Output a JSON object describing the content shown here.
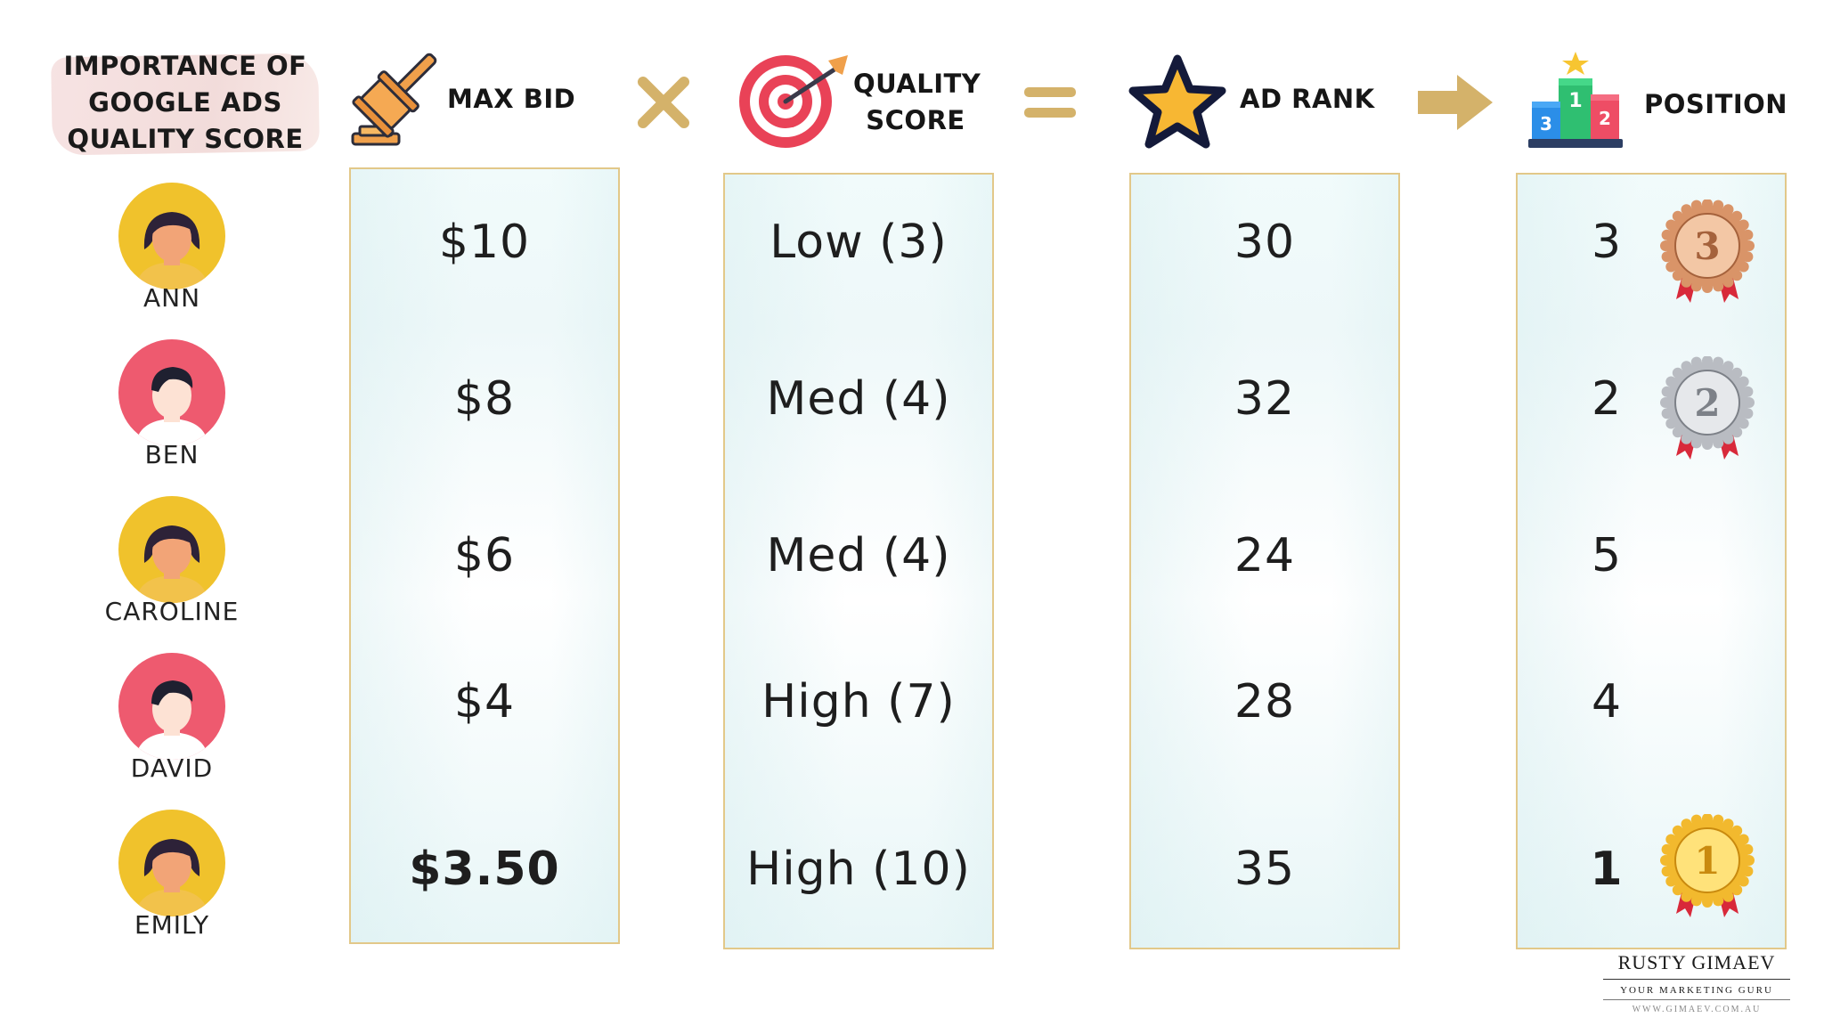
{
  "title": {
    "line1": "IMPORTANCE OF",
    "line2": "GOOGLE ADS",
    "line3": "QUALITY SCORE"
  },
  "headers": {
    "max_bid": "MAX BID",
    "quality_score_line1": "QUALITY",
    "quality_score_line2": "SCORE",
    "ad_rank": "AD RANK",
    "position": "POSITION"
  },
  "people": [
    {
      "name": "ANN",
      "bid": "$10",
      "quality": "Low (3)",
      "ad_rank": "30",
      "position": "3",
      "medal": "bronze-medal-icon",
      "avatar_bg": "#f0c22c"
    },
    {
      "name": "BEN",
      "bid": "$8",
      "quality": "Med (4)",
      "ad_rank": "32",
      "position": "2",
      "medal": "silver-medal-icon",
      "avatar_bg": "#ee5a6f"
    },
    {
      "name": "CAROLINE",
      "bid": "$6",
      "quality": "Med (4)",
      "ad_rank": "24",
      "position": "5",
      "medal": "",
      "avatar_bg": "#f0c22c"
    },
    {
      "name": "DAVID",
      "bid": "$4",
      "quality": "High (7)",
      "ad_rank": "28",
      "position": "4",
      "medal": "",
      "avatar_bg": "#ee5a6f"
    },
    {
      "name": "EMILY",
      "bid": "$3.50",
      "quality": "High (10)",
      "ad_rank": "35",
      "position": "1",
      "medal": "gold-medal-icon",
      "avatar_bg": "#f0c22c"
    }
  ],
  "medal_numbers": {
    "bronze": "3",
    "silver": "2",
    "gold": "1"
  },
  "podium_numbers": {
    "first": "1",
    "second": "2",
    "third": "3"
  },
  "icons": {
    "max_bid": "gavel-icon",
    "multiply": "multiply-icon",
    "quality_score": "target-icon",
    "equals": "equals-icon",
    "ad_rank": "star-icon",
    "arrow": "arrow-right-icon",
    "position": "podium-icon"
  },
  "colors": {
    "accent_gold": "#d4b26a",
    "column_border": "#e2c889",
    "avatar_yellow": "#f0c22c",
    "avatar_pink": "#ee5a6f"
  },
  "logo": {
    "name": "RUSTY GIMAEV",
    "tagline": "YOUR MARKETING GURU",
    "url": "WWW.GIMAEV.COM.AU"
  }
}
